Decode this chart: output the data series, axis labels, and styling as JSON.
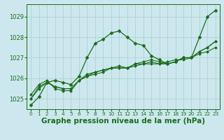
{
  "bg_color": "#cce8ee",
  "grid_color": "#aacccc",
  "line_color": "#1a6b1a",
  "marker_color": "#1a6b1a",
  "xlabel": "Graphe pression niveau de la mer (hPa)",
  "xlabel_fontsize": 7.5,
  "xlim": [
    -0.5,
    23.5
  ],
  "ylim": [
    1024.5,
    1029.6
  ],
  "yticks": [
    1025,
    1026,
    1027,
    1028,
    1029
  ],
  "xticks": [
    0,
    1,
    2,
    3,
    4,
    5,
    6,
    7,
    8,
    9,
    10,
    11,
    12,
    13,
    14,
    15,
    16,
    17,
    18,
    19,
    20,
    21,
    22,
    23
  ],
  "series": [
    [
      1024.7,
      1025.1,
      1025.8,
      1025.9,
      1025.8,
      1025.7,
      1026.1,
      1027.0,
      1027.7,
      1027.9,
      1028.2,
      1028.3,
      1028.0,
      1027.7,
      1027.6,
      1027.1,
      1026.9,
      1026.7,
      1026.8,
      1027.0,
      1027.0,
      1028.0,
      1029.0,
      1029.3
    ],
    [
      1025.2,
      1025.7,
      1025.9,
      1025.5,
      1025.4,
      1025.4,
      1025.9,
      1026.1,
      1026.2,
      1026.3,
      1026.5,
      1026.5,
      1026.5,
      1026.6,
      1026.7,
      1026.7,
      1026.7,
      1026.8,
      1026.9,
      1026.9,
      1027.0,
      1027.2,
      1027.3,
      1027.5
    ],
    [
      1025.0,
      1025.6,
      1025.8,
      1025.6,
      1025.5,
      1025.5,
      1025.9,
      1026.2,
      1026.3,
      1026.4,
      1026.5,
      1026.5,
      1026.5,
      1026.7,
      1026.7,
      1026.8,
      1026.7,
      1026.7,
      1026.8,
      1027.0,
      1027.0,
      1027.3,
      1027.5,
      1027.8
    ],
    [
      1025.0,
      1025.5,
      1025.8,
      1025.6,
      1025.5,
      1025.5,
      1025.9,
      1026.1,
      1026.3,
      1026.4,
      1026.5,
      1026.6,
      1026.5,
      1026.7,
      1026.8,
      1026.9,
      1026.8,
      1026.7,
      1026.8,
      1027.0,
      1027.0,
      1027.3,
      1027.5,
      1027.8
    ]
  ]
}
